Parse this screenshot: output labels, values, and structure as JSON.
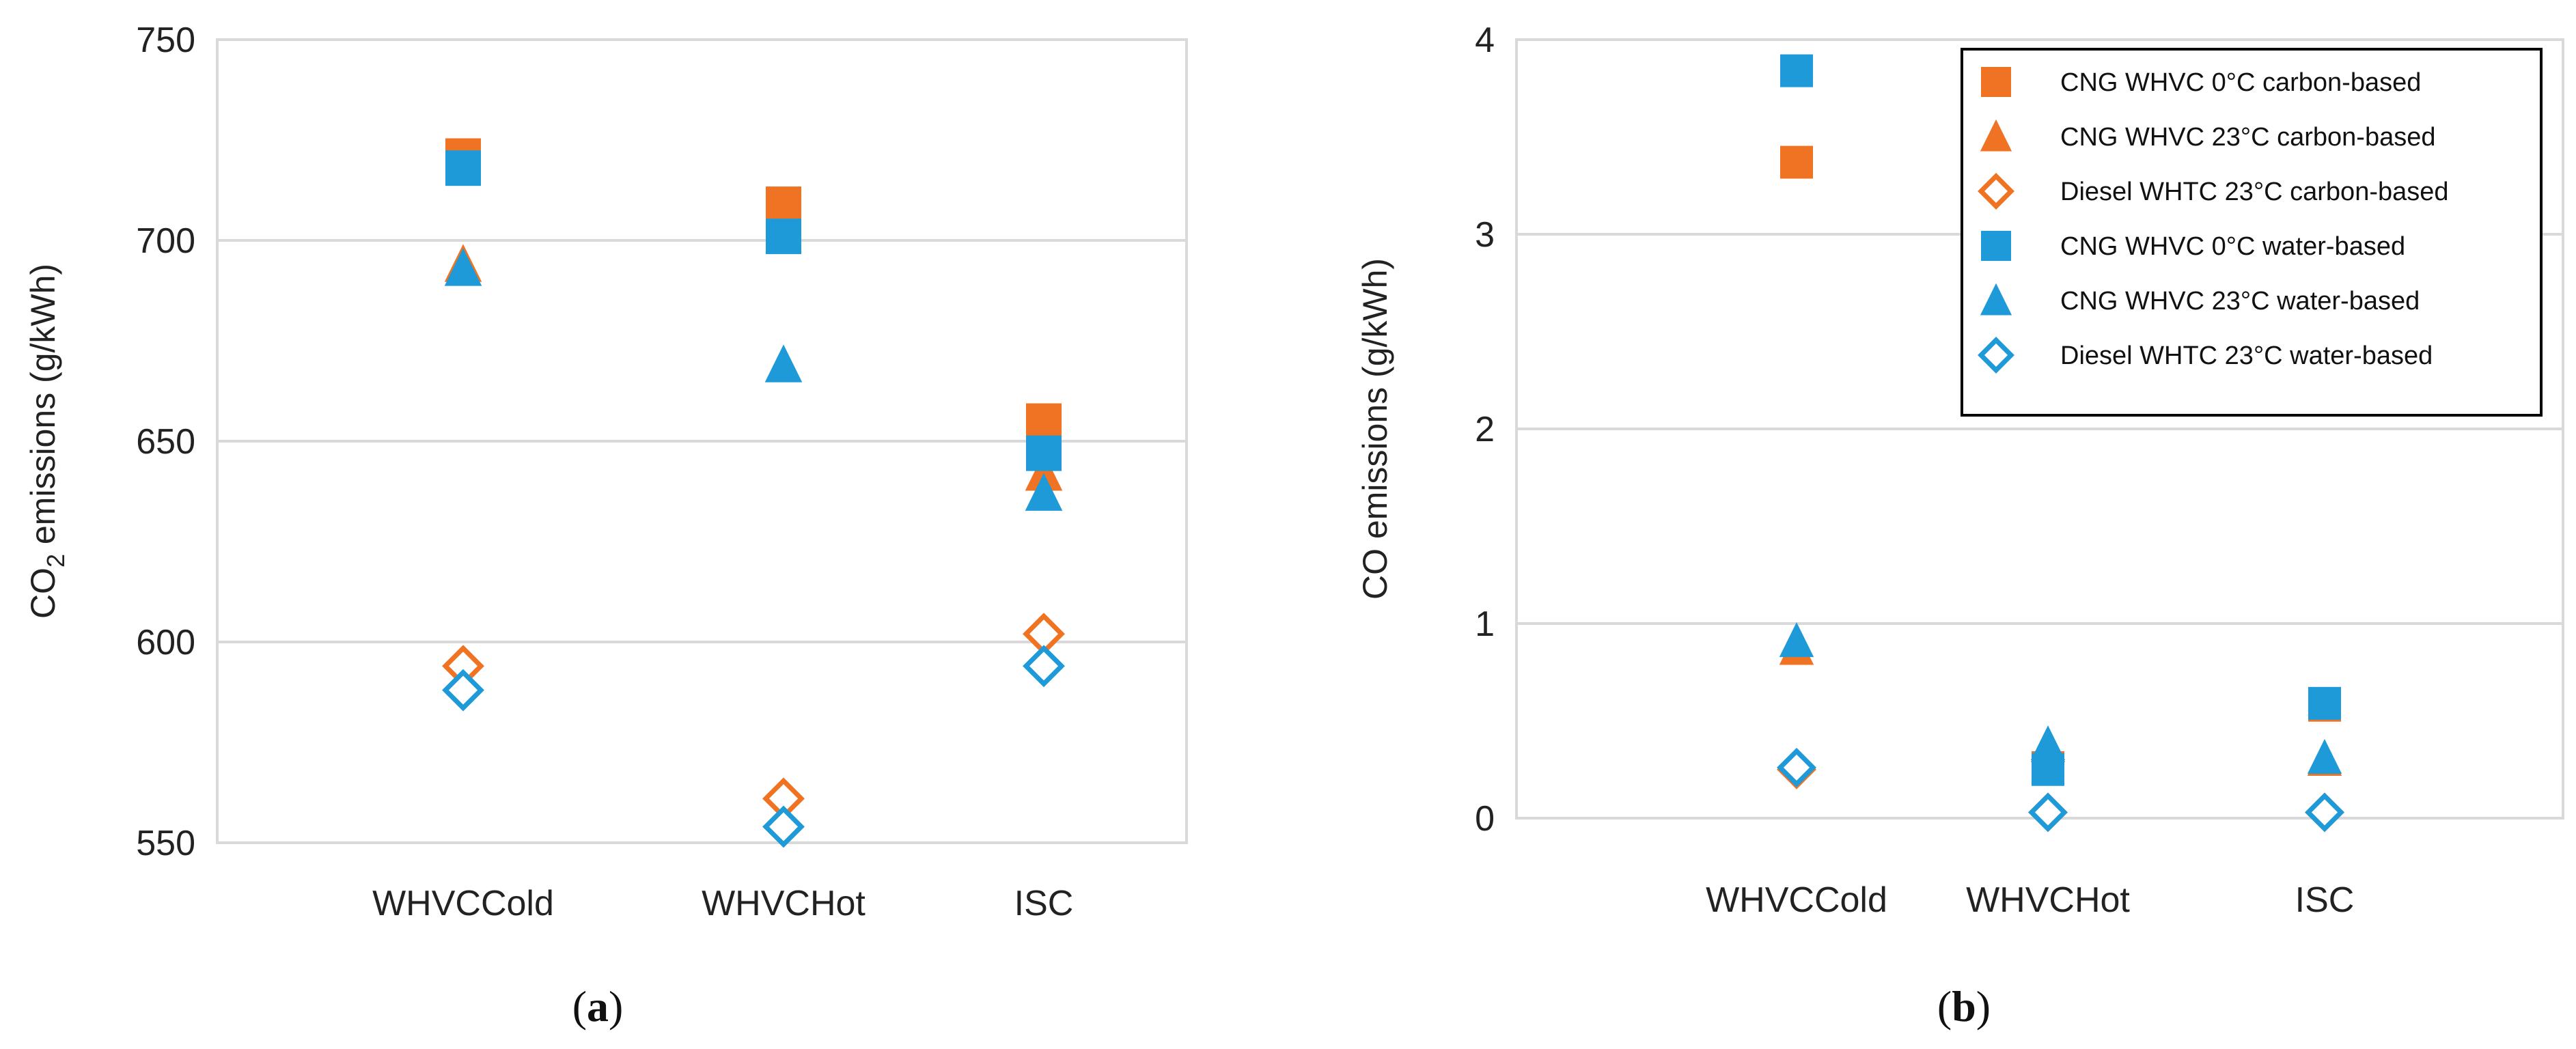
{
  "colors": {
    "orange": "#F07323",
    "blue": "#1F9AD9",
    "grid": "#D9D9D9",
    "frame": "#D9D9D9"
  },
  "chart_data": [
    {
      "panel": "a",
      "caption_open": "(",
      "caption_letter": "a",
      "caption_close": ")",
      "type": "scatter",
      "ylabel_main": "CO",
      "ylabel_sub": "2",
      "ylabel_rest": " emissions (g/kWh)",
      "ylim": [
        550,
        750
      ],
      "yticks": [
        550,
        600,
        650,
        700,
        750
      ],
      "ytick_labels": [
        "550",
        "600",
        "650",
        "700",
        "750"
      ],
      "categories": [
        "WHVCCold",
        "WHVCHot",
        "ISC"
      ],
      "series": [
        {
          "name": "CNG WHVC 0°C carbon-based",
          "marker": "square",
          "color": "orange",
          "filled": true,
          "values": [
            721,
            709,
            655
          ]
        },
        {
          "name": "CNG WHVC 23°C carbon-based",
          "marker": "triangle",
          "color": "orange",
          "filled": true,
          "values": [
            694,
            null,
            642
          ]
        },
        {
          "name": "Diesel WHTC 23°C carbon-based",
          "marker": "diamond",
          "color": "orange",
          "filled": false,
          "values": [
            594,
            561,
            602
          ]
        },
        {
          "name": "CNG WHVC 0°C water-based",
          "marker": "square",
          "color": "blue",
          "filled": true,
          "values": [
            718,
            701,
            647
          ]
        },
        {
          "name": "CNG WHVC 23°C water-based",
          "marker": "triangle",
          "color": "blue",
          "filled": true,
          "values": [
            693,
            669,
            637
          ]
        },
        {
          "name": "Diesel WHTC 23°C water-based",
          "marker": "diamond",
          "color": "blue",
          "filled": false,
          "values": [
            588,
            554,
            594
          ]
        }
      ]
    },
    {
      "panel": "b",
      "caption_open": "(",
      "caption_letter": "b",
      "caption_close": ")",
      "type": "scatter",
      "ylabel": "CO emissions (g/kWh)",
      "ylim": [
        0,
        4
      ],
      "yticks": [
        0,
        1,
        2,
        3,
        4
      ],
      "ytick_labels": [
        "0",
        "1",
        "2",
        "3",
        "4"
      ],
      "categories": [
        "WHVCCold",
        "WHVCHot",
        "ISC"
      ],
      "legend": "top-right",
      "series": [
        {
          "name": "CNG WHVC 0°C carbon-based",
          "marker": "square",
          "color": "orange",
          "filled": true,
          "values": [
            3.37,
            0.26,
            0.58
          ]
        },
        {
          "name": "CNG WHVC 23°C carbon-based",
          "marker": "triangle",
          "color": "orange",
          "filled": true,
          "values": [
            0.87,
            0.37,
            0.3
          ]
        },
        {
          "name": "Diesel WHTC 23°C carbon-based",
          "marker": "diamond",
          "color": "orange",
          "filled": false,
          "values": [
            0.25,
            0.03,
            0.03
          ]
        },
        {
          "name": "CNG WHVC 0°C water-based",
          "marker": "square",
          "color": "blue",
          "filled": true,
          "values": [
            3.84,
            0.25,
            0.59
          ]
        },
        {
          "name": "CNG WHVC 23°C water-based",
          "marker": "triangle",
          "color": "blue",
          "filled": true,
          "values": [
            0.91,
            0.38,
            0.31
          ]
        },
        {
          "name": "Diesel WHTC 23°C water-based",
          "marker": "diamond",
          "color": "blue",
          "filled": false,
          "values": [
            0.26,
            0.03,
            0.03
          ]
        }
      ]
    }
  ]
}
